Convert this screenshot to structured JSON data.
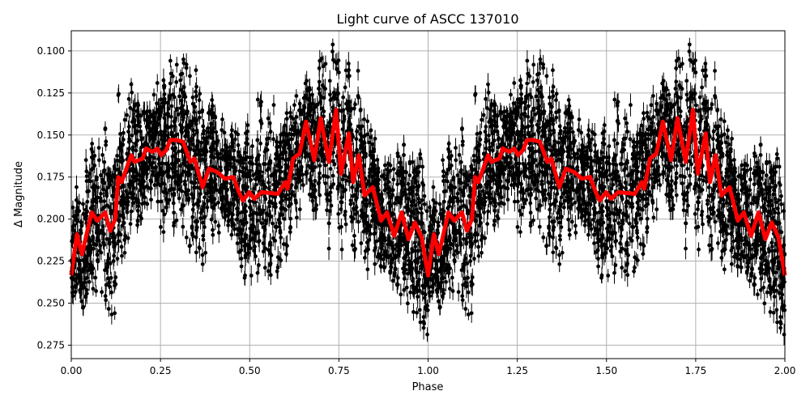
{
  "chart_data": {
    "type": "scatter",
    "title": "Light curve of ASCC 137010",
    "xlabel": "Phase",
    "ylabel": "Δ Magnitude",
    "xlim": [
      0.0,
      2.0
    ],
    "ylim": [
      0.283,
      0.088
    ],
    "y_inverted": true,
    "grid": true,
    "xticks": [
      "0.00",
      "0.25",
      "0.50",
      "0.75",
      "1.00",
      "1.25",
      "1.50",
      "1.75",
      "2.00"
    ],
    "yticks": [
      "0.100",
      "0.125",
      "0.150",
      "0.175",
      "0.200",
      "0.225",
      "0.250",
      "0.275"
    ],
    "series": [
      {
        "type": "errorbar-scatter",
        "color": "#000000",
        "values_note": ""
      },
      {
        "type": "line",
        "color": "#ff0000",
        "x": [
          0.0,
          0.016,
          0.03,
          0.057,
          0.073,
          0.095,
          0.109,
          0.123,
          0.132,
          0.141,
          0.168,
          0.177,
          0.2,
          0.209,
          0.227,
          0.241,
          0.252,
          0.266,
          0.277,
          0.295,
          0.313,
          0.334,
          0.345,
          0.368,
          0.386,
          0.409,
          0.431,
          0.454,
          0.47,
          0.481,
          0.499,
          0.513,
          0.533,
          0.579,
          0.599,
          0.606,
          0.622,
          0.64,
          0.658,
          0.681,
          0.699,
          0.722,
          0.742,
          0.756,
          0.778,
          0.79,
          0.806,
          0.822,
          0.845,
          0.868,
          0.885,
          0.905,
          0.926,
          0.945,
          0.963,
          0.982,
          1.0
        ],
        "y": [
          0.2335,
          0.209,
          0.221,
          0.196,
          0.201,
          0.196,
          0.207,
          0.2,
          0.175,
          0.178,
          0.162,
          0.166,
          0.164,
          0.158,
          0.16,
          0.158,
          0.162,
          0.159,
          0.153,
          0.153,
          0.154,
          0.166,
          0.164,
          0.181,
          0.17,
          0.172,
          0.176,
          0.175,
          0.184,
          0.189,
          0.184,
          0.188,
          0.184,
          0.185,
          0.178,
          0.182,
          0.164,
          0.161,
          0.142,
          0.165,
          0.14,
          0.166,
          0.135,
          0.173,
          0.149,
          0.178,
          0.162,
          0.186,
          0.181,
          0.201,
          0.196,
          0.21,
          0.196,
          0.212,
          0.202,
          0.211,
          0.2335
        ],
        "repeat_period": 1.0
      }
    ]
  }
}
